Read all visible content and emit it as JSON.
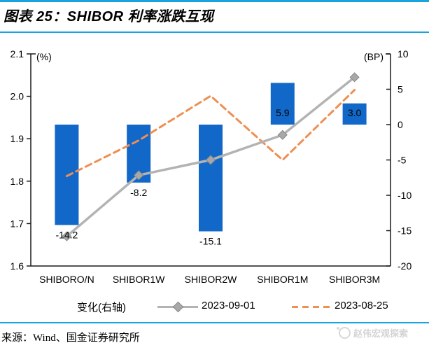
{
  "figure": {
    "title": "图表 25：SHIBOR 利率涨跌互现",
    "source": "来源：Wind、国金证券研究所",
    "watermark": "赵伟宏观探索",
    "accent_color": "#18A4DF"
  },
  "chart_data": {
    "type": "bar",
    "subtype": "bar-line-combo",
    "title": "SHIBOR 利率涨跌互现",
    "categories": [
      "SHIBORO/N",
      "SHIBOR1W",
      "SHIBOR2W",
      "SHIBOR1M",
      "SHIBOR3M"
    ],
    "series": [
      {
        "name": "变化(右轴)",
        "type": "bar",
        "axis": "right",
        "unit": "BP",
        "color": "#1268C8",
        "values": [
          -14.2,
          -8.2,
          -15.1,
          5.9,
          3.0
        ],
        "labels": [
          "-14.2",
          "-8.2",
          "-15.1",
          "5.9",
          "3.0"
        ]
      },
      {
        "name": "2023-09-01",
        "type": "line",
        "axis": "left",
        "unit": "%",
        "color": "#B3B3B3",
        "marker": "diamond",
        "marker_color": "#A8A8A8",
        "values": [
          1.67,
          1.814,
          1.85,
          1.909,
          2.045
        ]
      },
      {
        "name": "2023-08-25",
        "type": "line",
        "axis": "left",
        "unit": "%",
        "color": "#EF8F52",
        "dashed": true,
        "values": [
          1.812,
          1.896,
          2.001,
          1.85,
          2.015
        ]
      }
    ],
    "left_axis": {
      "label": "(%)",
      "min": 1.6,
      "max": 2.1,
      "ticks": [
        "2.1",
        "2.0",
        "1.9",
        "1.8",
        "1.7",
        "1.6"
      ]
    },
    "right_axis": {
      "label": "(BP)",
      "min": -20,
      "max": 10,
      "ticks": [
        "10",
        "5",
        "0",
        "-5",
        "-10",
        "-15",
        "-20"
      ]
    },
    "grid": false,
    "legend_position": "bottom"
  },
  "legend": {
    "items": [
      {
        "label": "变化(右轴)"
      },
      {
        "label": "2023-09-01"
      },
      {
        "label": "2023-08-25"
      }
    ]
  }
}
